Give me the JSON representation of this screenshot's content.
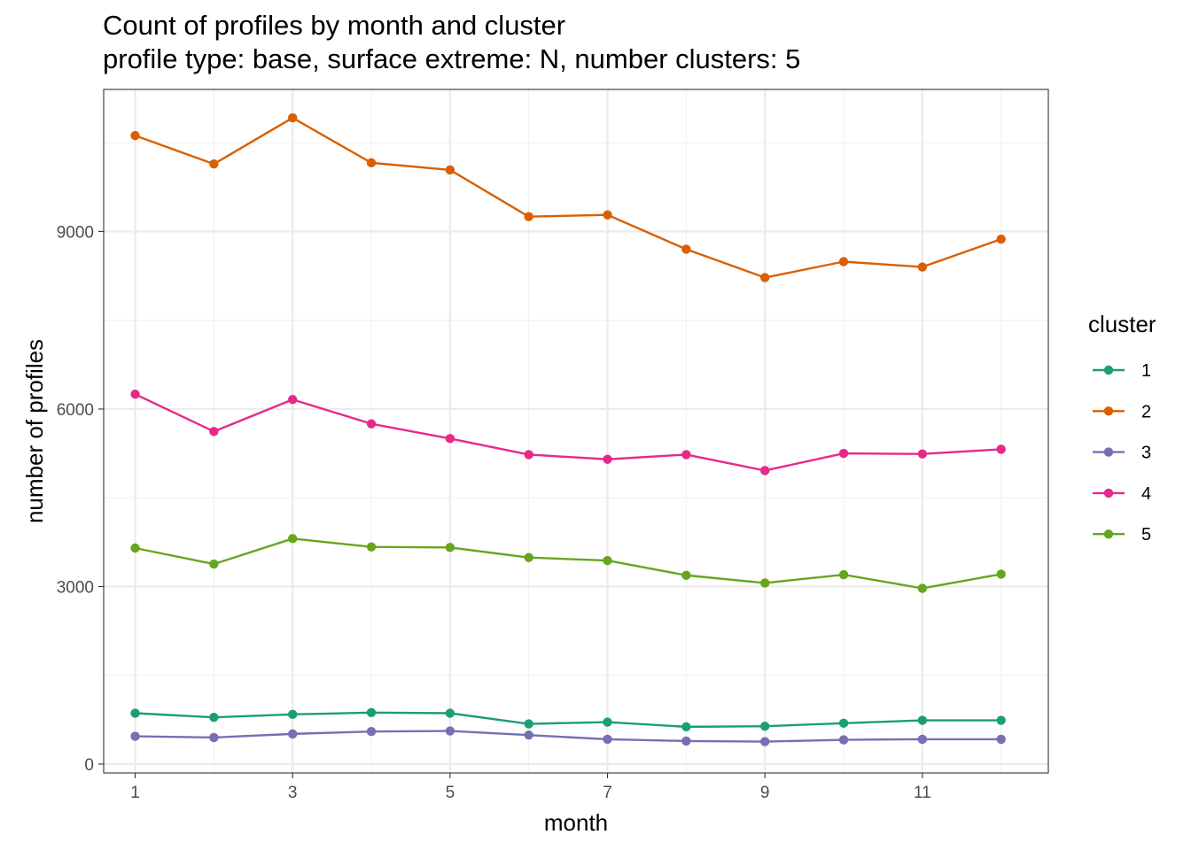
{
  "chart_data": {
    "type": "line",
    "title": "Count of profiles by month and cluster",
    "subtitle": "profile type: base, surface extreme: N, number clusters: 5",
    "xlabel": "month",
    "ylabel": "number of profiles",
    "x": [
      1,
      2,
      3,
      4,
      5,
      6,
      7,
      8,
      9,
      10,
      11,
      12
    ],
    "x_ticks": [
      1,
      3,
      5,
      7,
      9,
      11
    ],
    "y_ticks": [
      0,
      3000,
      6000,
      9000
    ],
    "xlim": [
      0.6,
      12.6
    ],
    "ylim": [
      -150,
      11400
    ],
    "grid": true,
    "legend_title": "cluster",
    "legend_position": "right",
    "series": [
      {
        "name": "1",
        "color": "#1b9e77",
        "values": [
          860,
          790,
          840,
          870,
          860,
          680,
          710,
          630,
          640,
          690,
          740,
          740
        ]
      },
      {
        "name": "2",
        "color": "#d95f02",
        "values": [
          10620,
          10140,
          10920,
          10160,
          10040,
          9250,
          9280,
          8700,
          8220,
          8490,
          8400,
          8870
        ]
      },
      {
        "name": "3",
        "color": "#7570b3",
        "values": [
          470,
          450,
          510,
          550,
          560,
          490,
          420,
          390,
          380,
          410,
          420,
          420
        ]
      },
      {
        "name": "4",
        "color": "#e7298a",
        "values": [
          6250,
          5620,
          6160,
          5750,
          5500,
          5230,
          5150,
          5230,
          4960,
          5250,
          5240,
          5320
        ]
      },
      {
        "name": "5",
        "color": "#66a61e",
        "values": [
          3650,
          3380,
          3810,
          3670,
          3660,
          3490,
          3440,
          3190,
          3060,
          3200,
          2970,
          3210
        ]
      }
    ]
  }
}
